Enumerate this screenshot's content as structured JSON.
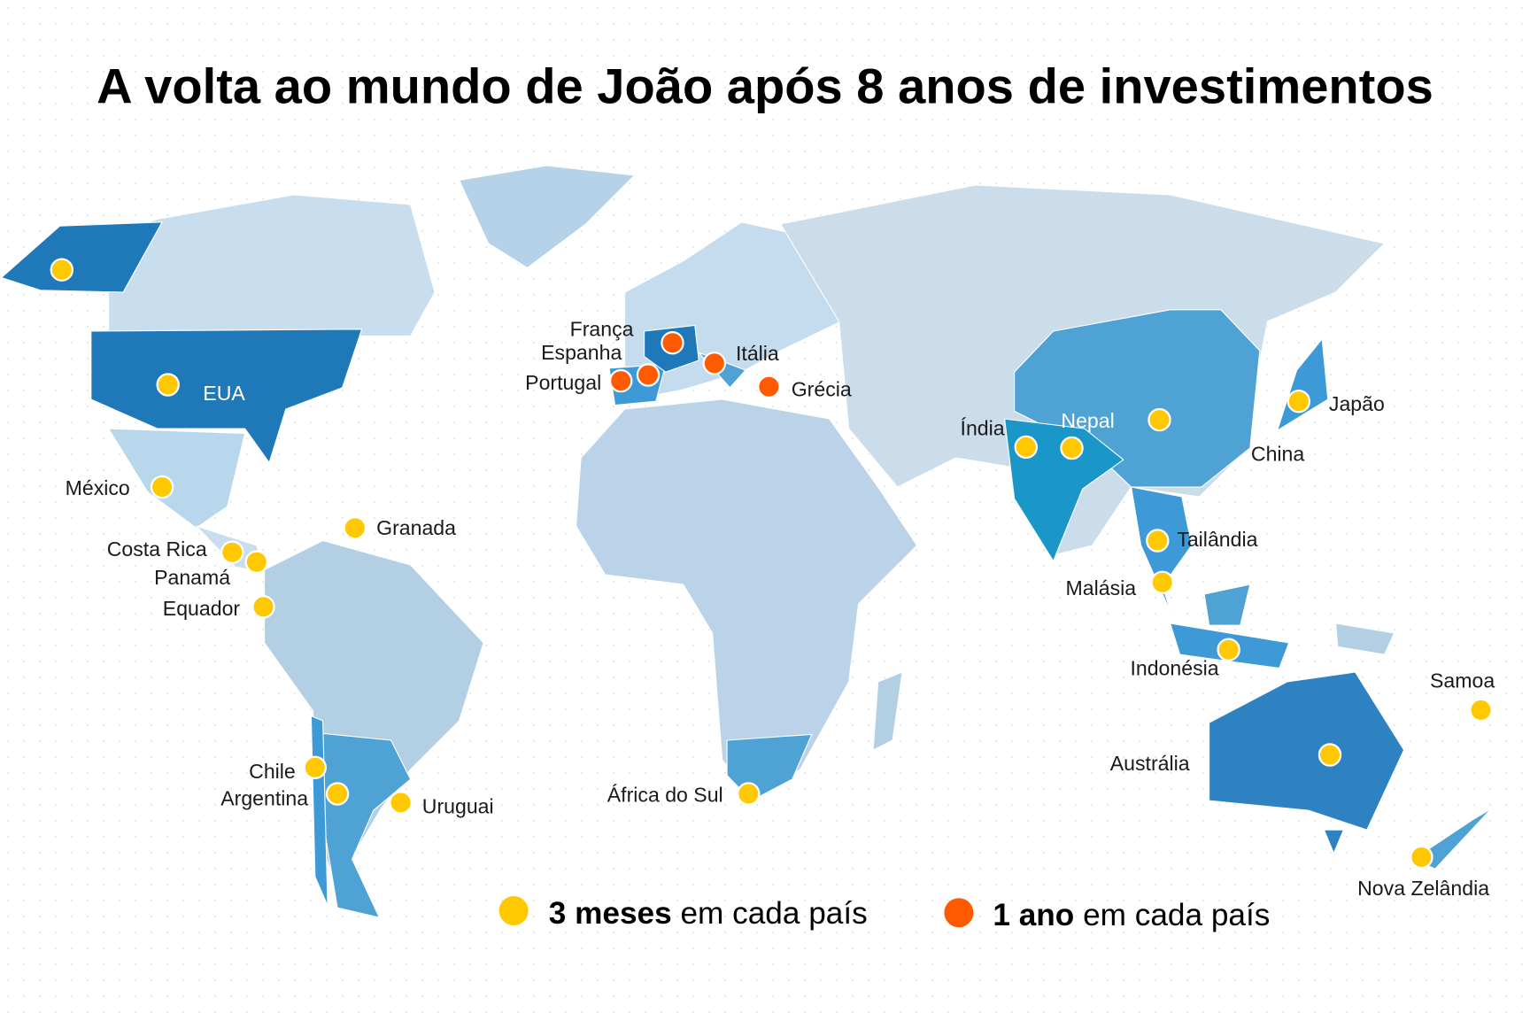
{
  "title": "A volta ao mundo de João após 8 anos de investimentos",
  "colors": {
    "three_months": "#FFC800",
    "one_year": "#FF5A00",
    "visited_dark": "#1F78B8",
    "visited_medium": "#4FA2D4",
    "unvisited_light": "#C2D9EC"
  },
  "markers": [
    {
      "id": "alasca",
      "label": "",
      "type": "three_months"
    },
    {
      "id": "eua",
      "label": "EUA",
      "type": "three_months"
    },
    {
      "id": "mexico",
      "label": "México",
      "type": "three_months"
    },
    {
      "id": "granada",
      "label": "Granada",
      "type": "three_months"
    },
    {
      "id": "costa-rica",
      "label": "Costa Rica",
      "type": "three_months"
    },
    {
      "id": "panama",
      "label": "Panamá",
      "type": "three_months"
    },
    {
      "id": "equador",
      "label": "Equador",
      "type": "three_months"
    },
    {
      "id": "chile",
      "label": "Chile",
      "type": "three_months"
    },
    {
      "id": "argentina",
      "label": "Argentina",
      "type": "three_months"
    },
    {
      "id": "uruguai",
      "label": "Uruguai",
      "type": "three_months"
    },
    {
      "id": "africa-do-sul",
      "label": "África do Sul",
      "type": "three_months"
    },
    {
      "id": "franca",
      "label": "França",
      "type": "one_year"
    },
    {
      "id": "espanha",
      "label": "Espanha",
      "type": "one_year"
    },
    {
      "id": "portugal",
      "label": "Portugal",
      "type": "one_year"
    },
    {
      "id": "italia",
      "label": "Itália",
      "type": "one_year"
    },
    {
      "id": "grecia",
      "label": "Grécia",
      "type": "one_year"
    },
    {
      "id": "india",
      "label": "Índia",
      "type": "three_months"
    },
    {
      "id": "nepal",
      "label": "Nepal",
      "type": "three_months"
    },
    {
      "id": "china",
      "label": "China",
      "type": "three_months"
    },
    {
      "id": "japao",
      "label": "Japão",
      "type": "three_months"
    },
    {
      "id": "tailandia",
      "label": "Tailândia",
      "type": "three_months"
    },
    {
      "id": "malasia",
      "label": "Malásia",
      "type": "three_months"
    },
    {
      "id": "indonesia",
      "label": "Indonésia",
      "type": "three_months"
    },
    {
      "id": "samoa",
      "label": "Samoa",
      "type": "three_months"
    },
    {
      "id": "australia",
      "label": "Austrália",
      "type": "three_months"
    },
    {
      "id": "nova-zelandia",
      "label": "Nova Zelândia",
      "type": "three_months"
    }
  ],
  "legend": [
    {
      "type": "three_months",
      "bold": "3 meses",
      "rest": " em cada país"
    },
    {
      "type": "one_year",
      "bold": "1 ano",
      "rest": " em cada país"
    }
  ]
}
